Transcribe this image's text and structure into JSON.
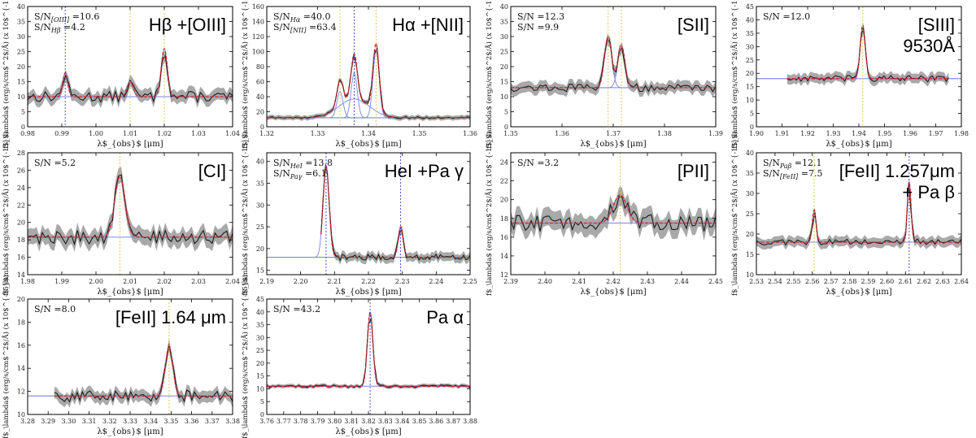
{
  "colors": {
    "data": "#1a1a1a",
    "error_band": "#8c8c8c",
    "fit": "#d62728",
    "component": "#7b86e6",
    "line_marker_yellow": "#d9c24a",
    "line_marker_blue": "#4040c8"
  },
  "ylabel": "f$_\\lambda$ (erg/s/cm$^2$/Å) (x 10$^{-15}$)",
  "xlabel": "λ$_{obs}$ [μm]",
  "chart_data": [
    {
      "type": "line",
      "title_lines": [
        "Hβ +[OIII]"
      ],
      "sn_lines": [
        "S/N[OIII] =10.6",
        "S/NHβ =4.2"
      ],
      "xlim": [
        0.98,
        1.04
      ],
      "ylim": [
        0,
        40
      ],
      "xticks": [
        "0.98",
        "0.99",
        "1.00",
        "1.01",
        "1.02",
        "1.03",
        "1.04"
      ],
      "xtick_values": [
        0.98,
        0.99,
        1.0,
        1.01,
        1.02,
        1.03,
        1.04
      ],
      "yticks": [
        0,
        5,
        10,
        15,
        20,
        25,
        30,
        35,
        40
      ],
      "continuum": 10,
      "components": [
        {
          "center": 0.991,
          "amp": 8,
          "sigma": 0.0007
        },
        {
          "center": 1.01,
          "amp": 5,
          "sigma": 0.0009
        },
        {
          "center": 1.02,
          "amp": 16,
          "sigma": 0.0009
        }
      ],
      "markers": [
        {
          "x": 0.991,
          "color": "blue"
        },
        {
          "x": 1.01,
          "color": "yellow"
        },
        {
          "x": 1.02,
          "color": "yellow"
        }
      ],
      "noise": 1.8,
      "band": 2.0
    },
    {
      "type": "line",
      "title_lines": [
        "Hα +[NII]"
      ],
      "sn_lines": [
        "S/NHα =40.0",
        "S/N[NII] =63.4"
      ],
      "xlim": [
        1.32,
        1.36
      ],
      "ylim": [
        0,
        160
      ],
      "xticks": [
        "1.32",
        "1.33",
        "1.34",
        "1.35",
        "1.36"
      ],
      "xtick_values": [
        1.32,
        1.33,
        1.34,
        1.35,
        1.36
      ],
      "yticks": [
        0,
        20,
        40,
        60,
        80,
        100,
        120,
        140,
        160
      ],
      "continuum": 12,
      "components": [
        {
          "center": 1.3344,
          "amp": 35,
          "sigma": 0.0006
        },
        {
          "center": 1.3372,
          "amp": 60,
          "sigma": 0.0006
        },
        {
          "center": 1.3372,
          "amp": 25,
          "sigma": 0.003
        },
        {
          "center": 1.3415,
          "amp": 90,
          "sigma": 0.0006
        }
      ],
      "markers": [
        {
          "x": 1.3344,
          "color": "yellow"
        },
        {
          "x": 1.3372,
          "color": "blue"
        },
        {
          "x": 1.3415,
          "color": "yellow"
        }
      ],
      "noise": 1.5,
      "band": 3.0
    },
    {
      "type": "line",
      "title_lines": [
        "[SII]"
      ],
      "sn_lines": [
        "S/N =12.3",
        "S/N =9.9"
      ],
      "xlim": [
        1.35,
        1.39
      ],
      "ylim": [
        0,
        40
      ],
      "xticks": [
        "1.35",
        "1.36",
        "1.37",
        "1.38",
        "1.39"
      ],
      "xtick_values": [
        1.35,
        1.36,
        1.37,
        1.38,
        1.39
      ],
      "yticks": [
        0,
        5,
        10,
        15,
        20,
        25,
        30,
        35,
        40
      ],
      "continuum": 13,
      "components": [
        {
          "center": 1.369,
          "amp": 17,
          "sigma": 0.0007
        },
        {
          "center": 1.3716,
          "amp": 14,
          "sigma": 0.0007
        }
      ],
      "markers": [
        {
          "x": 1.369,
          "color": "yellow"
        },
        {
          "x": 1.3716,
          "color": "yellow"
        }
      ],
      "noise": 1.3,
      "band": 1.8
    },
    {
      "type": "line",
      "title_lines": [
        "[SIII]",
        "9530Å"
      ],
      "sn_lines": [
        "S/N =12.0"
      ],
      "xlim": [
        1.9,
        1.98
      ],
      "ylim": [
        0,
        45
      ],
      "xticks": [
        "1.90",
        "1.91",
        "1.92",
        "1.93",
        "1.94",
        "1.95",
        "1.96",
        "1.97",
        "1.98"
      ],
      "xtick_values": [
        1.9,
        1.91,
        1.92,
        1.93,
        1.94,
        1.95,
        1.96,
        1.97,
        1.98
      ],
      "yticks": [
        0,
        5,
        10,
        15,
        20,
        25,
        30,
        35,
        40,
        45
      ],
      "continuum": 18,
      "components": [
        {
          "center": 1.9415,
          "amp": 20,
          "sigma": 0.001
        }
      ],
      "markers": [
        {
          "x": 1.9415,
          "color": "yellow"
        }
      ],
      "noise": 1.2,
      "band": 1.8,
      "data_range": [
        1.912,
        1.975
      ]
    },
    {
      "type": "line",
      "title_lines": [
        "[CI]"
      ],
      "sn_lines": [
        "S/N =5.2"
      ],
      "xlim": [
        1.98,
        2.04
      ],
      "ylim": [
        14,
        28
      ],
      "xticks": [
        "1.98",
        "1.99",
        "2.00",
        "2.01",
        "2.02",
        "2.03",
        "2.04"
      ],
      "xtick_values": [
        1.98,
        1.99,
        2.0,
        2.01,
        2.02,
        2.03,
        2.04
      ],
      "yticks": [
        14,
        16,
        18,
        20,
        22,
        24,
        26,
        28
      ],
      "continuum": 18.3,
      "components": [
        {
          "center": 2.007,
          "amp": 7,
          "sigma": 0.0015
        }
      ],
      "markers": [
        {
          "x": 2.007,
          "color": "yellow"
        }
      ],
      "noise": 0.8,
      "band": 0.9
    },
    {
      "type": "line",
      "title_lines": [
        "HeI +Pa γ"
      ],
      "sn_lines": [
        "S/NHeI =13.8",
        "S/NPaγ =6.1"
      ],
      "xlim": [
        2.19,
        2.25
      ],
      "ylim": [
        14,
        42
      ],
      "xticks": [
        "2.19",
        "2.20",
        "2.21",
        "2.22",
        "2.23",
        "2.24",
        "2.25"
      ],
      "xtick_values": [
        2.19,
        2.2,
        2.21,
        2.22,
        2.23,
        2.24,
        2.25
      ],
      "yticks": [
        15,
        20,
        25,
        30,
        35,
        40
      ],
      "continuum": 18,
      "components": [
        {
          "center": 2.2075,
          "amp": 21,
          "sigma": 0.0009
        },
        {
          "center": 2.2295,
          "amp": 7,
          "sigma": 0.0007
        }
      ],
      "markers": [
        {
          "x": 2.2075,
          "color": "blue"
        },
        {
          "x": 2.2295,
          "color": "blue"
        }
      ],
      "noise": 0.7,
      "band": 1.0,
      "data_range": [
        2.206,
        2.25
      ]
    },
    {
      "type": "line",
      "title_lines": [
        "[PII]"
      ],
      "sn_lines": [
        "S/N =3.2"
      ],
      "xlim": [
        2.39,
        2.45
      ],
      "ylim": [
        12,
        25
      ],
      "xticks": [
        "2.39",
        "2.40",
        "2.41",
        "2.42",
        "2.43",
        "2.44",
        "2.45"
      ],
      "xtick_values": [
        2.39,
        2.4,
        2.41,
        2.42,
        2.43,
        2.44,
        2.45
      ],
      "yticks": [
        12,
        14,
        16,
        18,
        20,
        22,
        24
      ],
      "continuum": 17.5,
      "components": [
        {
          "center": 2.422,
          "amp": 3,
          "sigma": 0.002
        }
      ],
      "markers": [
        {
          "x": 2.422,
          "color": "yellow"
        }
      ],
      "noise": 0.9,
      "band": 1.0
    },
    {
      "type": "line",
      "title_lines": [
        "[FeII] 1.257μm",
        "+ Pa β"
      ],
      "sn_lines": [
        "S/NPaβ =12.1",
        "S/N[FeII] =7.5"
      ],
      "xlim": [
        2.53,
        2.64
      ],
      "ylim": [
        10,
        40
      ],
      "xticks": [
        "2.53",
        "2.54",
        "2.55",
        "2.56",
        "2.57",
        "2.58",
        "2.59",
        "2.60",
        "2.61",
        "2.62",
        "2.63",
        "2.64"
      ],
      "xtick_values": [
        2.53,
        2.54,
        2.55,
        2.56,
        2.57,
        2.58,
        2.59,
        2.6,
        2.61,
        2.62,
        2.63,
        2.64
      ],
      "yticks": [
        10,
        15,
        20,
        25,
        30,
        35,
        40
      ],
      "continuum": 18,
      "components": [
        {
          "center": 2.561,
          "amp": 8,
          "sigma": 0.001
        },
        {
          "center": 2.612,
          "amp": 15,
          "sigma": 0.001
        }
      ],
      "markers": [
        {
          "x": 2.561,
          "color": "yellow"
        },
        {
          "x": 2.612,
          "color": "blue"
        }
      ],
      "noise": 0.8,
      "band": 1.2
    },
    {
      "type": "line",
      "title_lines": [
        "[FeII] 1.64 μm"
      ],
      "sn_lines": [
        "S/N =8.0"
      ],
      "xlim": [
        3.28,
        3.38
      ],
      "ylim": [
        10,
        20
      ],
      "xticks": [
        "3.28",
        "3.29",
        "3.30",
        "3.31",
        "3.32",
        "3.33",
        "3.34",
        "3.35",
        "3.36",
        "3.37",
        "3.38"
      ],
      "xtick_values": [
        3.28,
        3.29,
        3.3,
        3.31,
        3.32,
        3.33,
        3.34,
        3.35,
        3.36,
        3.37,
        3.38
      ],
      "yticks": [
        10,
        12,
        14,
        16,
        18,
        20
      ],
      "continuum": 11.6,
      "components": [
        {
          "center": 3.349,
          "amp": 4.3,
          "sigma": 0.0018
        }
      ],
      "markers": [
        {
          "x": 3.349,
          "color": "yellow"
        }
      ],
      "noise": 0.5,
      "band": 0.5,
      "data_range": [
        3.293,
        3.38
      ]
    },
    {
      "type": "line",
      "title_lines": [
        "Pa α"
      ],
      "sn_lines": [
        "S/N =43.2"
      ],
      "xlim": [
        3.76,
        3.88
      ],
      "ylim": [
        0,
        45
      ],
      "xticks": [
        "3.76",
        "3.77",
        "3.78",
        "3.79",
        "3.80",
        "3.81",
        "3.82",
        "3.83",
        "3.84",
        "3.85",
        "3.86",
        "3.87",
        "3.88"
      ],
      "xtick_values": [
        3.76,
        3.77,
        3.78,
        3.79,
        3.8,
        3.81,
        3.82,
        3.83,
        3.84,
        3.85,
        3.86,
        3.87,
        3.88
      ],
      "yticks": [
        0,
        5,
        10,
        15,
        20,
        25,
        30,
        35,
        40,
        45
      ],
      "continuum": 11,
      "components": [
        {
          "center": 3.821,
          "amp": 29,
          "sigma": 0.0016
        }
      ],
      "markers": [
        {
          "x": 3.821,
          "color": "blue"
        }
      ],
      "noise": 0.5,
      "band": 0.7
    }
  ]
}
